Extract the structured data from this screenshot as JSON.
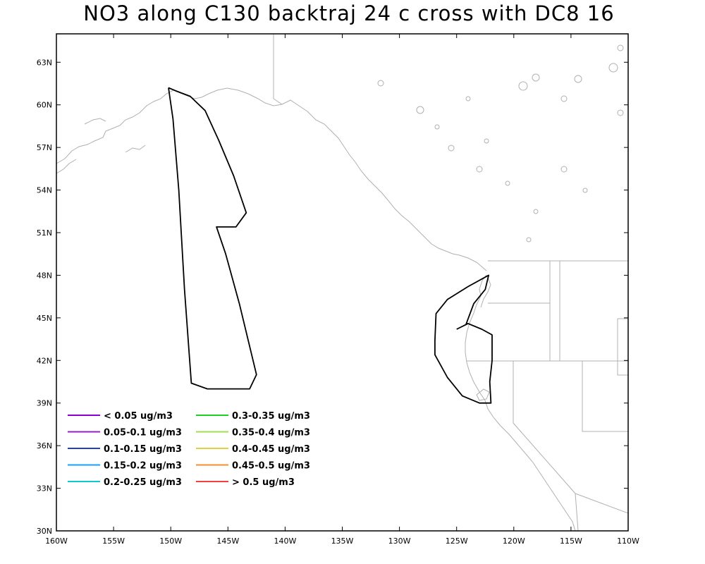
{
  "title": "NO3 along C130 backtraj 24 c cross with DC8 16",
  "map": {
    "lon_range": [
      -160,
      -110
    ],
    "lat_range": [
      30,
      65
    ],
    "x_ticks": [
      {
        "value": -160,
        "label": "160W"
      },
      {
        "value": -155,
        "label": "155W"
      },
      {
        "value": -150,
        "label": "150W"
      },
      {
        "value": -145,
        "label": "145W"
      },
      {
        "value": -140,
        "label": "140W"
      },
      {
        "value": -135,
        "label": "135W"
      },
      {
        "value": -130,
        "label": "130W"
      },
      {
        "value": -125,
        "label": "125W"
      },
      {
        "value": -120,
        "label": "120W"
      },
      {
        "value": -115,
        "label": "115W"
      },
      {
        "value": -110,
        "label": "110W"
      }
    ],
    "y_ticks": [
      {
        "value": 30,
        "label": "30N"
      },
      {
        "value": 33,
        "label": "33N"
      },
      {
        "value": 36,
        "label": "36N"
      },
      {
        "value": 39,
        "label": "39N"
      },
      {
        "value": 42,
        "label": "42N"
      },
      {
        "value": 45,
        "label": "45N"
      },
      {
        "value": 48,
        "label": "48N"
      },
      {
        "value": 51,
        "label": "51N"
      },
      {
        "value": 54,
        "label": "54N"
      },
      {
        "value": 57,
        "label": "57N"
      },
      {
        "value": 60,
        "label": "60N"
      },
      {
        "value": 63,
        "label": "63N"
      }
    ],
    "colors": {
      "coastline": "#b0b0b0",
      "trajectory": "#000000",
      "frame": "#000000"
    }
  },
  "legend": [
    {
      "label": "< 0.05 ug/m3",
      "color": "#8a00d4"
    },
    {
      "label": "0.05-0.1 ug/m3",
      "color": "#9a1ec8"
    },
    {
      "label": "0.1-0.15 ug/m3",
      "color": "#2040c8"
    },
    {
      "label": "0.15-0.2 ug/m3",
      "color": "#14a0ff"
    },
    {
      "label": "0.2-0.25 ug/m3",
      "color": "#10c8d2"
    },
    {
      "label": "0.3-0.35 ug/m3",
      "color": "#20d020"
    },
    {
      "label": "0.35-0.4 ug/m3",
      "color": "#a0e050"
    },
    {
      "label": "0.4-0.45 ug/m3",
      "color": "#e0d240"
    },
    {
      "label": "0.45-0.5 ug/m3",
      "color": "#f09030"
    },
    {
      "label": "> 0.5 ug/m3",
      "color": "#f04040"
    }
  ],
  "trajectories": [
    {
      "name": "",
      "points": [
        [
          -150.2,
          61.2
        ],
        [
          -149.8,
          59.0
        ],
        [
          -149.3,
          54.0
        ],
        [
          -148.8,
          47.0
        ],
        [
          -148.2,
          40.4
        ],
        [
          -146.8,
          40.0
        ],
        [
          -143.1,
          40.0
        ],
        [
          -142.5,
          41.0
        ],
        [
          -144.0,
          46.0
        ],
        [
          -145.2,
          49.5
        ],
        [
          -146.0,
          51.4
        ],
        [
          -144.3,
          51.4
        ],
        [
          -143.4,
          52.4
        ],
        [
          -144.5,
          55.0
        ],
        [
          -145.8,
          57.5
        ],
        [
          -147.0,
          59.6
        ],
        [
          -148.3,
          60.6
        ],
        [
          -149.6,
          61.0
        ],
        [
          -150.2,
          61.2
        ]
      ]
    },
    {
      "name": "",
      "points": [
        [
          -125.0,
          44.2
        ],
        [
          -124.0,
          44.6
        ],
        [
          -122.8,
          44.2
        ],
        [
          -121.9,
          43.8
        ],
        [
          -121.9,
          42.0
        ],
        [
          -122.1,
          40.5
        ],
        [
          -122.0,
          39.0
        ],
        [
          -123.0,
          39.0
        ],
        [
          -124.5,
          39.5
        ],
        [
          -125.8,
          40.8
        ],
        [
          -126.9,
          42.4
        ],
        [
          -126.9,
          43.4
        ],
        [
          -126.8,
          45.3
        ],
        [
          -125.8,
          46.3
        ],
        [
          -124.0,
          47.2
        ],
        [
          -122.2,
          48.0
        ],
        [
          -122.5,
          47.0
        ],
        [
          -123.5,
          46.0
        ],
        [
          -124.2,
          44.5
        ]
      ]
    }
  ]
}
